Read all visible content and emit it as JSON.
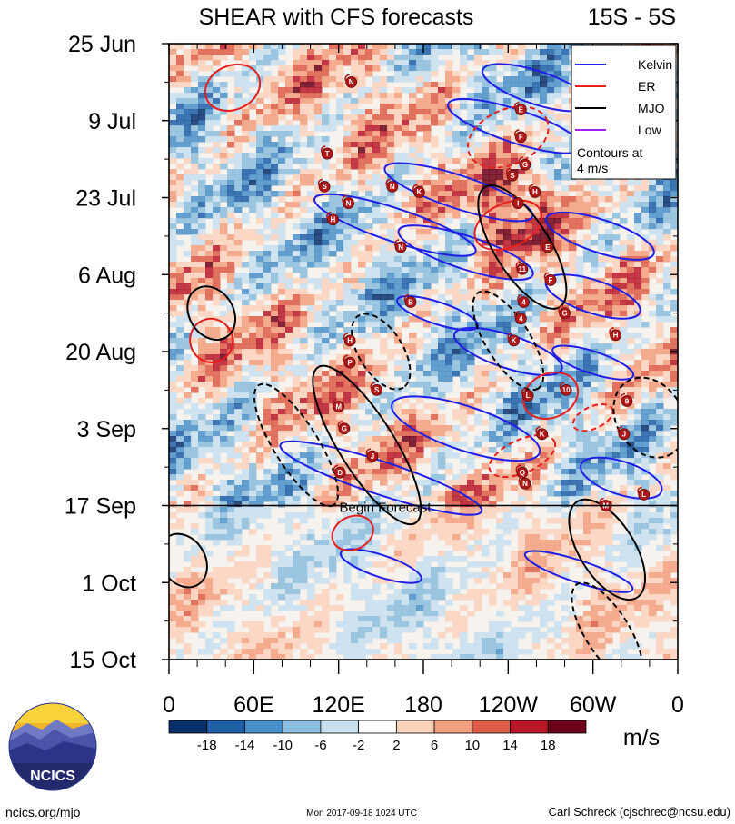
{
  "chart_data": {
    "type": "heatmap",
    "title": "SHEAR with CFS forecasts",
    "region_label": "15S - 5S",
    "y_tick_labels": [
      "25 Jun",
      "9 Jul",
      "23 Jul",
      "6 Aug",
      "20 Aug",
      "3 Sep",
      "17 Sep",
      "1 Oct",
      "15 Oct"
    ],
    "x_tick_labels": [
      "0",
      "60E",
      "120E",
      "180",
      "120W",
      "60W",
      "0"
    ],
    "x_range_deg_east": [
      0,
      360
    ],
    "y_range": [
      "2017-06-25",
      "2017-10-15"
    ],
    "forecast_start": "2017-09-17",
    "forecast_label": "Begin Forecast",
    "legend": {
      "placement": "top-right",
      "entries": [
        {
          "name": "Kelvin",
          "color": "#1f1fe6"
        },
        {
          "name": "ER",
          "color": "#e61f1f"
        },
        {
          "name": "MJO",
          "color": "#000000"
        },
        {
          "name": "Low",
          "color": "#a020f0"
        }
      ],
      "note_line1": "Contours at",
      "note_line2": "4 m/s"
    },
    "colorbar": {
      "labels": [
        "-18",
        "-14",
        "-10",
        "-6",
        "-2",
        "2",
        "6",
        "10",
        "14",
        "18"
      ],
      "colors": [
        "#08306b",
        "#1f5fa8",
        "#4a90c8",
        "#8cbedd",
        "#c8dfee",
        "#ffffff",
        "#fbd3bd",
        "#f2a07f",
        "#dd5d48",
        "#b8192a",
        "#6b0018"
      ],
      "units": "m/s"
    },
    "storms": [
      {
        "label": "N",
        "lon": 129,
        "date": "2017-07-02"
      },
      {
        "label": "E",
        "lon": 249,
        "date": "2017-07-07"
      },
      {
        "label": "F",
        "lon": 249,
        "date": "2017-07-12"
      },
      {
        "label": "T",
        "lon": 112,
        "date": "2017-07-15"
      },
      {
        "label": "G",
        "lon": 252,
        "date": "2017-07-17"
      },
      {
        "label": "S",
        "lon": 243,
        "date": "2017-07-19"
      },
      {
        "label": "S",
        "lon": 110,
        "date": "2017-07-21"
      },
      {
        "label": "N",
        "lon": 158,
        "date": "2017-07-21"
      },
      {
        "label": "K",
        "lon": 177,
        "date": "2017-07-22"
      },
      {
        "label": "H",
        "lon": 259,
        "date": "2017-07-22"
      },
      {
        "label": "N",
        "lon": 127,
        "date": "2017-07-24"
      },
      {
        "label": "I",
        "lon": 247,
        "date": "2017-07-24"
      },
      {
        "label": "H",
        "lon": 116,
        "date": "2017-07-27"
      },
      {
        "label": "N",
        "lon": 164,
        "date": "2017-08-01"
      },
      {
        "label": "E",
        "lon": 268,
        "date": "2017-08-01"
      },
      {
        "label": "11",
        "lon": 250,
        "date": "2017-08-05"
      },
      {
        "label": "F",
        "lon": 270,
        "date": "2017-08-07"
      },
      {
        "label": "B",
        "lon": 171,
        "date": "2017-08-11"
      },
      {
        "label": "4",
        "lon": 251,
        "date": "2017-08-11"
      },
      {
        "label": "G",
        "lon": 280,
        "date": "2017-08-13"
      },
      {
        "label": "4",
        "lon": 249,
        "date": "2017-08-14"
      },
      {
        "label": "H",
        "lon": 316,
        "date": "2017-08-17"
      },
      {
        "label": "K",
        "lon": 244,
        "date": "2017-08-18"
      },
      {
        "label": "H",
        "lon": 128,
        "date": "2017-08-18"
      },
      {
        "label": "P",
        "lon": 128,
        "date": "2017-08-22"
      },
      {
        "label": "10",
        "lon": 281,
        "date": "2017-08-27"
      },
      {
        "label": "S",
        "lon": 147,
        "date": "2017-08-27"
      },
      {
        "label": "L",
        "lon": 254,
        "date": "2017-08-28"
      },
      {
        "label": "M",
        "lon": 120,
        "date": "2017-08-30"
      },
      {
        "label": "9",
        "lon": 324,
        "date": "2017-08-29"
      },
      {
        "label": "G",
        "lon": 124,
        "date": "2017-09-03"
      },
      {
        "label": "J",
        "lon": 322,
        "date": "2017-09-04"
      },
      {
        "label": "K",
        "lon": 264,
        "date": "2017-09-04"
      },
      {
        "label": "J",
        "lon": 144,
        "date": "2017-09-08"
      },
      {
        "label": "D",
        "lon": 121,
        "date": "2017-09-11"
      },
      {
        "label": "Q",
        "lon": 250,
        "date": "2017-09-11"
      },
      {
        "label": "N",
        "lon": 252,
        "date": "2017-09-13"
      },
      {
        "label": "M",
        "lon": 309,
        "date": "2017-09-17"
      },
      {
        "label": "L",
        "lon": 336,
        "date": "2017-09-15"
      }
    ],
    "kelvin_contours": [
      {
        "lon": 260,
        "date": "2017-07-03",
        "length_deg": 80,
        "lat_days": 3
      },
      {
        "lon": 245,
        "date": "2017-07-10",
        "length_deg": 100,
        "lat_days": 3
      },
      {
        "lon": 205,
        "date": "2017-07-22",
        "length_deg": 110,
        "lat_days": 3
      },
      {
        "lon": 160,
        "date": "2017-07-28",
        "length_deg": 120,
        "lat_days": 3
      },
      {
        "lon": 210,
        "date": "2017-08-02",
        "length_deg": 100,
        "lat_days": 3
      },
      {
        "lon": 305,
        "date": "2017-07-30",
        "length_deg": 80,
        "lat_days": 3
      },
      {
        "lon": 300,
        "date": "2017-08-10",
        "length_deg": 70,
        "lat_days": 3
      },
      {
        "lon": 190,
        "date": "2017-08-13",
        "length_deg": 60,
        "lat_days": 2
      },
      {
        "lon": 240,
        "date": "2017-08-20",
        "length_deg": 80,
        "lat_days": 3
      },
      {
        "lon": 300,
        "date": "2017-08-22",
        "length_deg": 60,
        "lat_days": 2
      },
      {
        "lon": 210,
        "date": "2017-09-03",
        "length_deg": 110,
        "lat_days": 4
      },
      {
        "lon": 150,
        "date": "2017-09-12",
        "length_deg": 150,
        "lat_days": 3
      },
      {
        "lon": 320,
        "date": "2017-09-12",
        "length_deg": 60,
        "lat_days": 3
      },
      {
        "lon": 150,
        "date": "2017-09-28",
        "length_deg": 60,
        "lat_days": 2
      },
      {
        "lon": 290,
        "date": "2017-09-29",
        "length_deg": 80,
        "lat_days": 2
      }
    ],
    "er_contours": [
      {
        "lon": 45,
        "date": "2017-07-03",
        "length_deg": 40,
        "lat_days": 4,
        "dashed": false
      },
      {
        "lon": 240,
        "date": "2017-07-12",
        "length_deg": 60,
        "lat_days": 5,
        "dashed": true
      },
      {
        "lon": 240,
        "date": "2017-07-28",
        "length_deg": 50,
        "lat_days": 4,
        "dashed": false
      },
      {
        "lon": 30,
        "date": "2017-08-18",
        "length_deg": 30,
        "lat_days": 4,
        "dashed": false
      },
      {
        "lon": 270,
        "date": "2017-08-28",
        "length_deg": 40,
        "lat_days": 4,
        "dashed": false
      },
      {
        "lon": 300,
        "date": "2017-09-01",
        "length_deg": 30,
        "lat_days": 2,
        "dashed": true
      },
      {
        "lon": 250,
        "date": "2017-09-08",
        "length_deg": 50,
        "lat_days": 3,
        "dashed": true
      },
      {
        "lon": 130,
        "date": "2017-09-22",
        "length_deg": 30,
        "lat_days": 3,
        "dashed": false
      }
    ],
    "mjo_contours": [
      {
        "lon": 250,
        "date": "2017-08-01",
        "length_deg": 100,
        "lat_days": 5,
        "dashed": false
      },
      {
        "lon": 140,
        "date": "2017-09-06",
        "length_deg": 130,
        "lat_days": 5,
        "dashed": false
      },
      {
        "lon": 90,
        "date": "2017-09-06",
        "length_deg": 100,
        "lat_days": 4,
        "dashed": true
      },
      {
        "lon": 150,
        "date": "2017-08-20",
        "length_deg": 60,
        "lat_days": 4,
        "dashed": true
      },
      {
        "lon": 240,
        "date": "2017-08-18",
        "length_deg": 80,
        "lat_days": 4,
        "dashed": true
      },
      {
        "lon": 310,
        "date": "2017-09-25",
        "length_deg": 80,
        "lat_days": 5,
        "dashed": false
      },
      {
        "lon": 30,
        "date": "2017-08-13",
        "length_deg": 40,
        "lat_days": 4,
        "dashed": false
      },
      {
        "lon": 10,
        "date": "2017-09-27",
        "length_deg": 40,
        "lat_days": 4,
        "dashed": false
      },
      {
        "lon": 340,
        "date": "2017-09-01",
        "length_deg": 60,
        "lat_days": 6,
        "dashed": true
      },
      {
        "lon": 310,
        "date": "2017-10-10",
        "length_deg": 80,
        "lat_days": 4,
        "dashed": true
      }
    ]
  },
  "footer": {
    "logo_text": "NCICS",
    "url": "ncics.org/mjo",
    "timestamp": "Mon 2017-09-18 1024 UTC",
    "author": "Carl Schreck (cjschrec@ncsu.edu)"
  }
}
